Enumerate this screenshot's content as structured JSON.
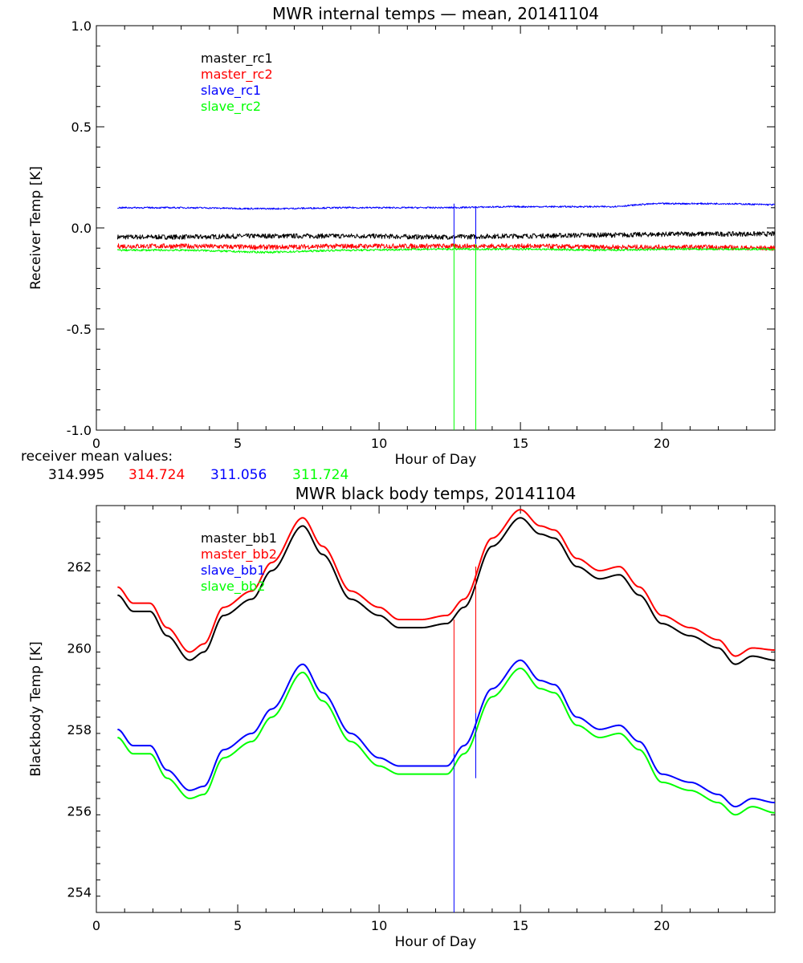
{
  "chart_data": [
    {
      "type": "line",
      "title": "MWR internal temps — mean, 20141104",
      "xlabel": "Hour of Day",
      "ylabel": "Receiver Temp [K]",
      "xlim": [
        0,
        24
      ],
      "ylim": [
        -1.0,
        1.0
      ],
      "x_ticks": [
        "0",
        "5",
        "10",
        "15",
        "20"
      ],
      "y_ticks": [
        "-1.0",
        "-0.5",
        "0.0",
        "0.5",
        "1.0"
      ],
      "grid": false,
      "legend": "top-left",
      "series": [
        {
          "name": "master_rc1",
          "color": "#000000",
          "noise": 0.012,
          "x": [
            0.75,
            3,
            6,
            9,
            12,
            15,
            18,
            21,
            24
          ],
          "y": [
            -0.045,
            -0.045,
            -0.04,
            -0.04,
            -0.045,
            -0.04,
            -0.035,
            -0.03,
            -0.03
          ]
        },
        {
          "name": "master_rc2",
          "color": "#ff0000",
          "noise": 0.012,
          "x": [
            0.75,
            3,
            6,
            9,
            12,
            15,
            18,
            21,
            24
          ],
          "y": [
            -0.09,
            -0.09,
            -0.095,
            -0.09,
            -0.09,
            -0.09,
            -0.095,
            -0.095,
            -0.1
          ]
        },
        {
          "name": "slave_rc1",
          "color": "#0000ff",
          "noise": 0.004,
          "x": [
            0.75,
            3,
            6,
            9,
            12,
            15,
            18,
            20,
            22,
            24
          ],
          "y": [
            0.1,
            0.1,
            0.095,
            0.1,
            0.1,
            0.105,
            0.105,
            0.12,
            0.12,
            0.115
          ]
        },
        {
          "name": "slave_rc2",
          "color": "#00ff00",
          "noise": 0.005,
          "x": [
            0.75,
            3,
            6,
            9,
            12,
            15,
            18,
            21,
            24
          ],
          "y": [
            -0.11,
            -0.11,
            -0.12,
            -0.11,
            -0.105,
            -0.105,
            -0.11,
            -0.105,
            -0.105
          ]
        }
      ],
      "spikes": [
        {
          "x": 12.65,
          "y_from": 0.12,
          "y_to": -1.0,
          "color": "#0000ff",
          "color2": "#00ff00",
          "split": -0.08
        },
        {
          "x": 13.42,
          "y_from": 0.1,
          "y_to": -1.0,
          "color": "#0000ff",
          "color2": "#00ff00",
          "split": -0.08
        }
      ]
    },
    {
      "type": "line",
      "title": "MWR black body temps, 20141104",
      "xlabel": "Hour of Day",
      "ylabel": "Blackbody Temp [K]",
      "xlim": [
        0,
        24
      ],
      "ylim": [
        253.5,
        263.5
      ],
      "x_ticks": [
        "0",
        "5",
        "10",
        "15",
        "20"
      ],
      "y_ticks": [
        "254",
        "256",
        "258",
        "260",
        "262"
      ],
      "grid": false,
      "legend": "top-left",
      "series": [
        {
          "name": "master_bb1",
          "color": "#000000",
          "x": [
            0.75,
            1.3,
            1.9,
            2.5,
            3.3,
            3.8,
            4.5,
            5.5,
            6.2,
            7.3,
            8.0,
            9.0,
            10.0,
            10.7,
            11.5,
            12.4,
            13.0,
            14.0,
            15.0,
            15.7,
            16.2,
            17.0,
            17.8,
            18.5,
            19.2,
            20.0,
            21.0,
            22.0,
            22.6,
            23.2,
            24.0
          ],
          "y": [
            261.3,
            260.9,
            260.9,
            260.3,
            259.7,
            259.9,
            260.8,
            261.2,
            261.9,
            263.0,
            262.3,
            261.2,
            260.8,
            260.5,
            260.5,
            260.6,
            261.0,
            262.5,
            263.2,
            262.8,
            262.7,
            262.0,
            261.7,
            261.8,
            261.3,
            260.6,
            260.3,
            260.0,
            259.6,
            259.8,
            259.7
          ]
        },
        {
          "name": "master_bb2",
          "color": "#ff0000",
          "x": [
            0.75,
            1.3,
            1.9,
            2.5,
            3.3,
            3.8,
            4.5,
            5.5,
            6.2,
            7.3,
            8.0,
            9.0,
            10.0,
            10.7,
            11.5,
            12.4,
            13.0,
            14.0,
            15.0,
            15.7,
            16.2,
            17.0,
            17.8,
            18.5,
            19.2,
            20.0,
            21.0,
            22.0,
            22.6,
            23.2,
            24.0
          ],
          "y": [
            261.5,
            261.1,
            261.1,
            260.5,
            259.9,
            260.1,
            261.0,
            261.4,
            262.1,
            263.2,
            262.5,
            261.4,
            261.0,
            260.7,
            260.7,
            260.8,
            261.2,
            262.7,
            263.4,
            263.0,
            262.9,
            262.2,
            261.9,
            262.0,
            261.5,
            260.8,
            260.5,
            260.2,
            259.8,
            260.0,
            259.95
          ]
        },
        {
          "name": "slave_bb1",
          "color": "#0000ff",
          "x": [
            0.75,
            1.3,
            1.9,
            2.5,
            3.3,
            3.8,
            4.5,
            5.5,
            6.2,
            7.3,
            8.0,
            9.0,
            10.0,
            10.7,
            11.5,
            12.4,
            13.0,
            14.0,
            15.0,
            15.7,
            16.2,
            17.0,
            17.8,
            18.5,
            19.2,
            20.0,
            21.0,
            22.0,
            22.6,
            23.2,
            24.0
          ],
          "y": [
            258.0,
            257.6,
            257.6,
            257.0,
            256.5,
            256.6,
            257.5,
            257.9,
            258.5,
            259.6,
            258.9,
            257.9,
            257.3,
            257.1,
            257.1,
            257.1,
            257.6,
            259.0,
            259.7,
            259.2,
            259.1,
            258.3,
            258.0,
            258.1,
            257.7,
            256.9,
            256.7,
            256.4,
            256.1,
            256.3,
            256.2
          ]
        },
        {
          "name": "slave_bb2",
          "color": "#00ff00",
          "x": [
            0.75,
            1.3,
            1.9,
            2.5,
            3.3,
            3.8,
            4.5,
            5.5,
            6.2,
            7.3,
            8.0,
            9.0,
            10.0,
            10.7,
            11.5,
            12.4,
            13.0,
            14.0,
            15.0,
            15.7,
            16.2,
            17.0,
            17.8,
            18.5,
            19.2,
            20.0,
            21.0,
            22.0,
            22.6,
            23.2,
            24.0
          ],
          "y": [
            257.8,
            257.4,
            257.4,
            256.8,
            256.3,
            256.4,
            257.3,
            257.7,
            258.3,
            259.4,
            258.7,
            257.7,
            257.1,
            256.9,
            256.9,
            256.9,
            257.4,
            258.8,
            259.5,
            259.0,
            258.9,
            258.1,
            257.8,
            257.9,
            257.5,
            256.7,
            256.5,
            256.2,
            255.9,
            256.1,
            255.95
          ]
        }
      ],
      "spikes": [
        {
          "x": 12.65,
          "y_from": 260.7,
          "y_to": 253.5,
          "color": "#ff0000",
          "color2": "#0000ff",
          "split": 257.4
        },
        {
          "x": 13.42,
          "y_from": 262.0,
          "y_to": 256.8,
          "color": "#ff0000",
          "color2": "#0000ff",
          "split": 258.4
        }
      ]
    }
  ],
  "receiver_means": {
    "label": "receiver mean values:",
    "values": [
      {
        "text": "314.995",
        "color": "#000000"
      },
      {
        "text": "314.724",
        "color": "#ff0000"
      },
      {
        "text": "311.056",
        "color": "#0000ff"
      },
      {
        "text": "311.724",
        "color": "#00ff00"
      }
    ]
  }
}
